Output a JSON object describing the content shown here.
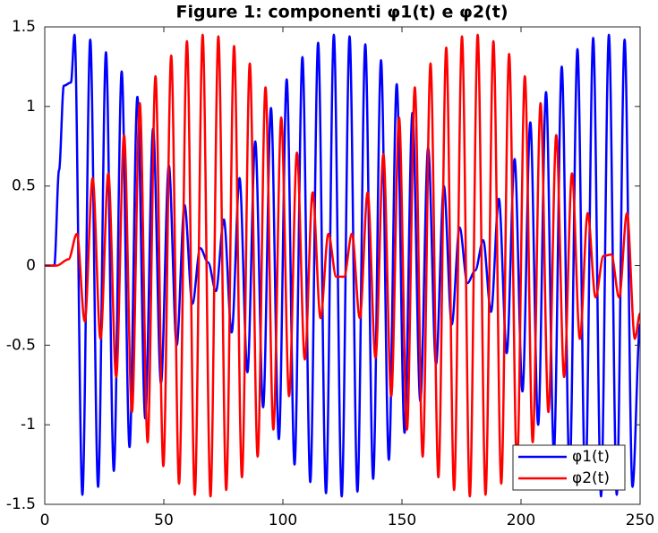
{
  "chart_data": {
    "type": "line",
    "title": "Figure 1: componenti φ1(t) e φ2(t)",
    "series": [
      {
        "name": "φ1(t)",
        "color": "#0000ff",
        "x": [
          0,
          4,
          6,
          8,
          11,
          12.5,
          15.8,
          19.1,
          22.4,
          25.7,
          29,
          32.3,
          35.6,
          38.9,
          42.2,
          45.5,
          48.8,
          52.1,
          55.4,
          58.7,
          62,
          65.3,
          68.6,
          71.9,
          75.2,
          78.5,
          81.8,
          85.1,
          88.4,
          91.7,
          95,
          98.3,
          101.6,
          104.9,
          108.2,
          111.5,
          114.8,
          118.1,
          121.4,
          124.7,
          128,
          131.3,
          134.6,
          137.9,
          141.2,
          144.5,
          147.8,
          151.1,
          154.4,
          157.7,
          161,
          164.3,
          167.6,
          170.9,
          174.2,
          177.5,
          180.8,
          184.1,
          187.4,
          190.7,
          194,
          197.3,
          200.6,
          203.9,
          207.2,
          210.5,
          213.8,
          217.1,
          220.4,
          223.7,
          227,
          230.3,
          233.6,
          236.9,
          240.2,
          243.5,
          246.8,
          250
        ],
        "values": [
          0,
          0,
          0.6,
          1.13,
          1.15,
          1.45,
          -1.44,
          1.42,
          -1.39,
          1.34,
          -1.29,
          1.22,
          -1.14,
          1.06,
          -0.96,
          0.86,
          -0.74,
          0.63,
          -0.5,
          0.38,
          -0.24,
          0.11,
          0.02,
          -0.16,
          0.29,
          -0.42,
          0.55,
          -0.67,
          0.78,
          -0.89,
          0.99,
          -1.09,
          1.17,
          -1.25,
          1.31,
          -1.36,
          1.4,
          -1.43,
          1.45,
          -1.45,
          1.44,
          -1.42,
          1.39,
          -1.34,
          1.29,
          -1.22,
          1.14,
          -1.05,
          0.96,
          -0.85,
          0.74,
          -0.62,
          0.5,
          -0.37,
          0.24,
          -0.11,
          -0.03,
          0.16,
          -0.29,
          0.42,
          -0.55,
          0.67,
          -0.79,
          0.9,
          -1,
          1.09,
          -1.17,
          1.25,
          -1.31,
          1.36,
          -1.4,
          1.43,
          -1.45,
          1.45,
          -1.44,
          1.42,
          -1.39,
          -0.37
        ]
      },
      {
        "name": "φ2(t)",
        "color": "#ff0000",
        "x": [
          0,
          5,
          10,
          13.5,
          16.8,
          20.1,
          23.4,
          26.7,
          30,
          33.3,
          36.6,
          39.9,
          43.2,
          46.5,
          49.8,
          53.1,
          56.4,
          59.7,
          63,
          66.3,
          69.6,
          72.9,
          76.2,
          79.5,
          82.8,
          86.1,
          89.4,
          92.7,
          96,
          99.3,
          102.6,
          105.9,
          109.2,
          112.5,
          115.8,
          119.1,
          122.4,
          125.7,
          129,
          132.3,
          135.6,
          138.9,
          142.2,
          145.5,
          148.8,
          152.1,
          155.4,
          158.7,
          162,
          165.3,
          168.6,
          171.9,
          175.2,
          178.5,
          181.8,
          185.1,
          188.4,
          191.7,
          195,
          198.3,
          201.6,
          204.9,
          208.2,
          211.5,
          214.8,
          218.1,
          221.4,
          224.7,
          228,
          231.3,
          234.6,
          237.9,
          241.2,
          244.5,
          247.8,
          250
        ],
        "values": [
          0,
          0,
          0.04,
          0.2,
          -0.35,
          0.55,
          -0.46,
          0.58,
          -0.7,
          0.82,
          -0.92,
          1.02,
          -1.11,
          1.19,
          -1.26,
          1.32,
          -1.37,
          1.41,
          -1.44,
          1.45,
          -1.45,
          1.44,
          -1.41,
          1.38,
          -1.33,
          1.27,
          -1.2,
          1.12,
          -1.03,
          0.93,
          -0.82,
          0.71,
          -0.59,
          0.46,
          -0.33,
          0.2,
          -0.07,
          -0.07,
          0.2,
          -0.33,
          0.46,
          -0.58,
          0.7,
          -0.82,
          0.93,
          -1.03,
          1.12,
          -1.2,
          1.27,
          -1.33,
          1.37,
          -1.41,
          1.44,
          -1.45,
          1.45,
          -1.44,
          1.41,
          -1.37,
          1.33,
          -1.27,
          1.19,
          -1.11,
          1.02,
          -0.92,
          0.82,
          -0.7,
          0.58,
          -0.46,
          0.33,
          -0.2,
          0.06,
          0.07,
          -0.2,
          0.33,
          -0.46,
          -0.3
        ]
      }
    ],
    "xlim": [
      0,
      250
    ],
    "xticks": [
      0,
      50,
      100,
      150,
      200,
      250
    ],
    "ylim": [
      -1.5,
      1.5
    ],
    "yticks": [
      -1.5,
      -1,
      -0.5,
      0,
      0.5,
      1,
      1.5
    ],
    "legend": "southeast",
    "grid": false
  }
}
